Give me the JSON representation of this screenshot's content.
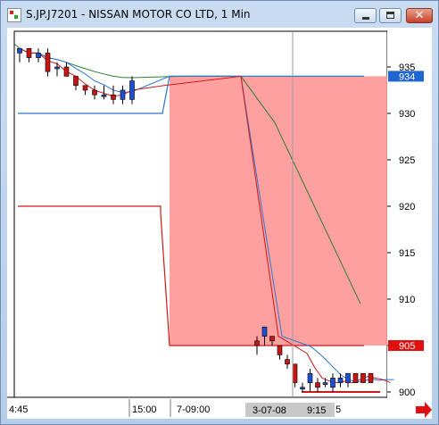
{
  "window": {
    "title": "S.JP.J7201 - NISSAN MOTOR CO LTD, 1 Min"
  },
  "colors": {
    "candle_up": "#1f4fd1",
    "candle_down": "#c81414",
    "ma_green": "#2f7d2f",
    "ma_blue": "#2c78d0",
    "ma_red": "#d01818",
    "band_blue": "#2c78d0",
    "band_red": "#d01818",
    "zone_fill": "#ff8f8f",
    "price_tag_blue": "#1f66d0",
    "price_tag_red": "#e01010",
    "arrow": "#e01010"
  },
  "chart_data": {
    "type": "candlestick",
    "y_ticks": [
      "935",
      "930",
      "925",
      "920",
      "915",
      "910",
      "905",
      "900"
    ],
    "ylim": [
      899,
      938
    ],
    "x_labels": [
      "4:45",
      "15:00",
      "7-09:00",
      "3-07-08",
      "9:15",
      "5"
    ],
    "price_tags": [
      {
        "value": "934",
        "color": "blue"
      },
      {
        "value": "905",
        "color": "red"
      }
    ],
    "candles_session1": [
      {
        "o": 936.5,
        "h": 937.0,
        "l": 935.5,
        "c": 937.0
      },
      {
        "o": 937.0,
        "h": 937.0,
        "l": 935.5,
        "c": 936.0
      },
      {
        "o": 936.0,
        "h": 937.0,
        "l": 935.5,
        "c": 936.5
      },
      {
        "o": 936.5,
        "h": 937.0,
        "l": 934.0,
        "c": 934.5
      },
      {
        "o": 935.0,
        "h": 935.5,
        "l": 934.0,
        "c": 935.0
      },
      {
        "o": 935.0,
        "h": 935.5,
        "l": 934.0,
        "c": 934.0
      },
      {
        "o": 934.0,
        "h": 934.0,
        "l": 932.5,
        "c": 933.0
      },
      {
        "o": 933.0,
        "h": 933.0,
        "l": 932.0,
        "c": 932.5
      },
      {
        "o": 932.5,
        "h": 933.0,
        "l": 931.5,
        "c": 932.0
      },
      {
        "o": 932.0,
        "h": 933.0,
        "l": 931.5,
        "c": 932.0
      },
      {
        "o": 932.0,
        "h": 933.0,
        "l": 931.0,
        "c": 931.5
      },
      {
        "o": 931.5,
        "h": 933.0,
        "l": 931.0,
        "c": 932.5
      },
      {
        "o": 931.5,
        "h": 934.0,
        "l": 931.0,
        "c": 933.5
      }
    ],
    "candles_session2": [
      {
        "o": 905.5,
        "h": 906.0,
        "l": 904.0,
        "c": 905.0
      },
      {
        "o": 906.0,
        "h": 907.0,
        "l": 905.0,
        "c": 907.0
      },
      {
        "o": 906.0,
        "h": 906.0,
        "l": 905.0,
        "c": 905.5
      },
      {
        "o": 905.0,
        "h": 905.0,
        "l": 903.5,
        "c": 904.0
      },
      {
        "o": 903.5,
        "h": 904.0,
        "l": 902.5,
        "c": 903.0
      },
      {
        "o": 903.0,
        "h": 903.0,
        "l": 900.5,
        "c": 901.0
      },
      {
        "o": 900.5,
        "h": 901.0,
        "l": 900.0,
        "c": 900.5
      },
      {
        "o": 901.0,
        "h": 902.5,
        "l": 900.0,
        "c": 902.0
      },
      {
        "o": 901.0,
        "h": 901.5,
        "l": 900.0,
        "c": 900.5
      },
      {
        "o": 901.0,
        "h": 901.5,
        "l": 900.5,
        "c": 901.0
      },
      {
        "o": 900.5,
        "h": 902.0,
        "l": 900.0,
        "c": 901.5
      },
      {
        "o": 901.0,
        "h": 902.0,
        "l": 900.5,
        "c": 901.5
      },
      {
        "o": 901.0,
        "h": 902.0,
        "l": 900.5,
        "c": 902.0
      },
      {
        "o": 902.0,
        "h": 902.0,
        "l": 901.0,
        "c": 901.0
      },
      {
        "o": 902.0,
        "h": 902.0,
        "l": 901.0,
        "c": 901.0
      },
      {
        "o": 902.0,
        "h": 902.0,
        "l": 901.0,
        "c": 901.0
      }
    ],
    "zone": {
      "top": 934.0,
      "bottom": 905.0
    },
    "band_blue_level": 930.0,
    "band_red_level": 920.0,
    "band_red_level_2": 905.0,
    "band_red_level_3": 900.0
  }
}
